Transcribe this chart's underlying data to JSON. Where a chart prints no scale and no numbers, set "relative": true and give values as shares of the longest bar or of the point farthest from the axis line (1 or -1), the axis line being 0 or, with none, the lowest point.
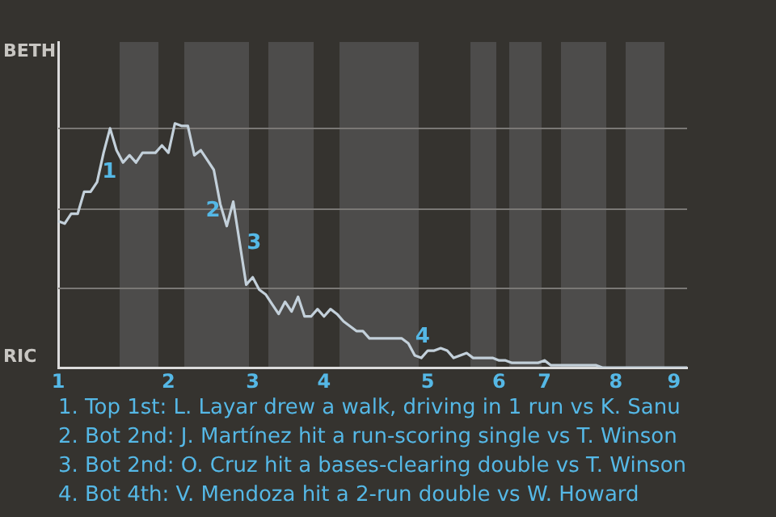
{
  "chart_data": {
    "type": "line",
    "categories": [
      "1",
      null,
      null,
      null,
      null,
      null,
      null,
      null,
      null,
      null,
      null,
      null,
      null,
      null,
      null,
      null,
      null,
      "2",
      null,
      null,
      null,
      null,
      null,
      null,
      null,
      null,
      null,
      null,
      null,
      null,
      "3",
      null,
      null,
      null,
      null,
      null,
      null,
      null,
      null,
      null,
      null,
      "4",
      null,
      null,
      null,
      null,
      null,
      null,
      null,
      null,
      null,
      null,
      null,
      null,
      null,
      null,
      null,
      "5",
      null,
      null,
      null,
      null,
      null,
      null,
      null,
      null,
      null,
      null,
      "6",
      null,
      null,
      null,
      null,
      null,
      null,
      "7",
      null,
      null,
      null,
      null,
      null,
      null,
      null,
      null,
      null,
      null,
      "8",
      null,
      null,
      null,
      null,
      null,
      null,
      null,
      null,
      "9",
      null,
      null
    ],
    "series": [
      {
        "color": "#c3d0da",
        "values": [
          0.6,
          0.59,
          0.63,
          0.63,
          0.72,
          0.72,
          0.76,
          0.88,
          0.98,
          0.89,
          0.84,
          0.87,
          0.84,
          0.88,
          0.88,
          0.88,
          0.91,
          0.88,
          1,
          0.99,
          0.99,
          0.87,
          0.89,
          0.85,
          0.81,
          0.67,
          0.58,
          0.68,
          0.51,
          0.34,
          0.37,
          0.32,
          0.3,
          0.26,
          0.22,
          0.27,
          0.23,
          0.29,
          0.21,
          0.21,
          0.24,
          0.21,
          0.24,
          0.22,
          0.19,
          0.17,
          0.15,
          0.15,
          0.12,
          0.12,
          0.12,
          0.12,
          0.12,
          0.12,
          0.1,
          0.05,
          0.04,
          0.07,
          0.07,
          0.08,
          0.07,
          0.04,
          0.05,
          0.06,
          0.04,
          0.04,
          0.04,
          0.04,
          0.03,
          0.03,
          0.02,
          0.02,
          0.02,
          0.02,
          0.02,
          0.03,
          0.01,
          0.01,
          0.01,
          0.01,
          0.01,
          0.01,
          0.01,
          0.01,
          0,
          0,
          0,
          0,
          0,
          0,
          0,
          0,
          0,
          0,
          0,
          0,
          0,
          0
        ]
      }
    ],
    "relative": true,
    "ref_lines": [
      {
        "axis": "y",
        "value": 0.33,
        "color": "#7a7875"
      },
      {
        "axis": "y",
        "value": 0.65,
        "color": "#7a7875"
      },
      {
        "axis": "y",
        "value": 0.98,
        "color": "#7a7875"
      }
    ],
    "legend": false,
    "marker": "none",
    "line_style": "solid",
    "annotations": [
      "BETH",
      "RIC",
      "1",
      "2",
      "3",
      "4",
      "1. Top 1st: L. Layar drew a walk, driving in 1 run vs K. Sanu",
      "2. Bot 2nd: J. Martínez hit a run-scoring single vs T. Winson",
      "3. Bot 2nd: O. Cruz hit a bases-clearing double vs T. Winson",
      "4. Bot 4th: V. Mendoza hit a 2-run double vs W. Howard"
    ]
  }
}
